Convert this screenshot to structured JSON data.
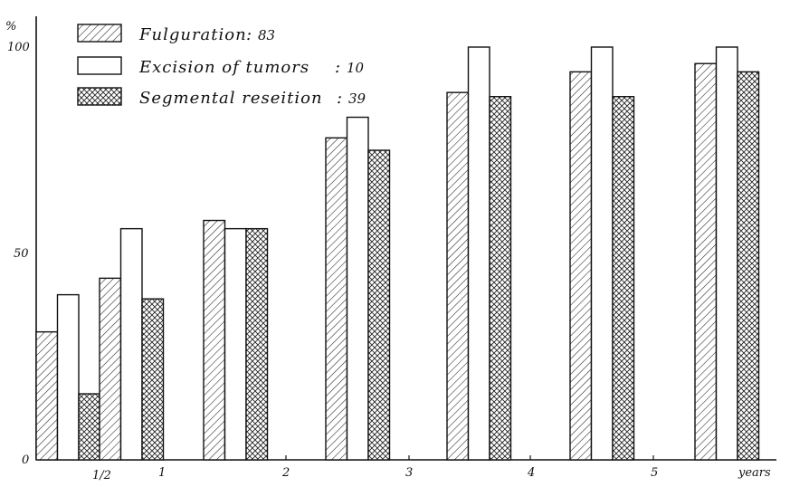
{
  "chart_data": {
    "type": "bar",
    "ylabel": "%",
    "xlabel": "years",
    "ylim": [
      0,
      100
    ],
    "y_ticks": [
      "0",
      "50",
      "100"
    ],
    "x_ticks": [
      "1/2",
      "1",
      "2",
      "3",
      "4",
      "5"
    ],
    "grid": false,
    "legend_placement": "top-left",
    "categories": [
      "1/2",
      "1",
      "2",
      "3",
      "4",
      "5",
      "years"
    ],
    "series": [
      {
        "name": "Fulguration",
        "count": "83",
        "pattern": "diagonal-hatch",
        "values": [
          31,
          44,
          58,
          78,
          89,
          94,
          96
        ]
      },
      {
        "name": "Excision of tumors",
        "count": "10",
        "pattern": "white",
        "values": [
          40,
          56,
          56,
          83,
          100,
          100,
          100
        ]
      },
      {
        "name": "Segmental reseition",
        "count": "39",
        "pattern": "cross-hatch",
        "values": [
          16,
          39,
          56,
          75,
          88,
          88,
          94
        ]
      }
    ]
  },
  "colors": {
    "ink": "#111111",
    "paper": "#ffffff"
  }
}
